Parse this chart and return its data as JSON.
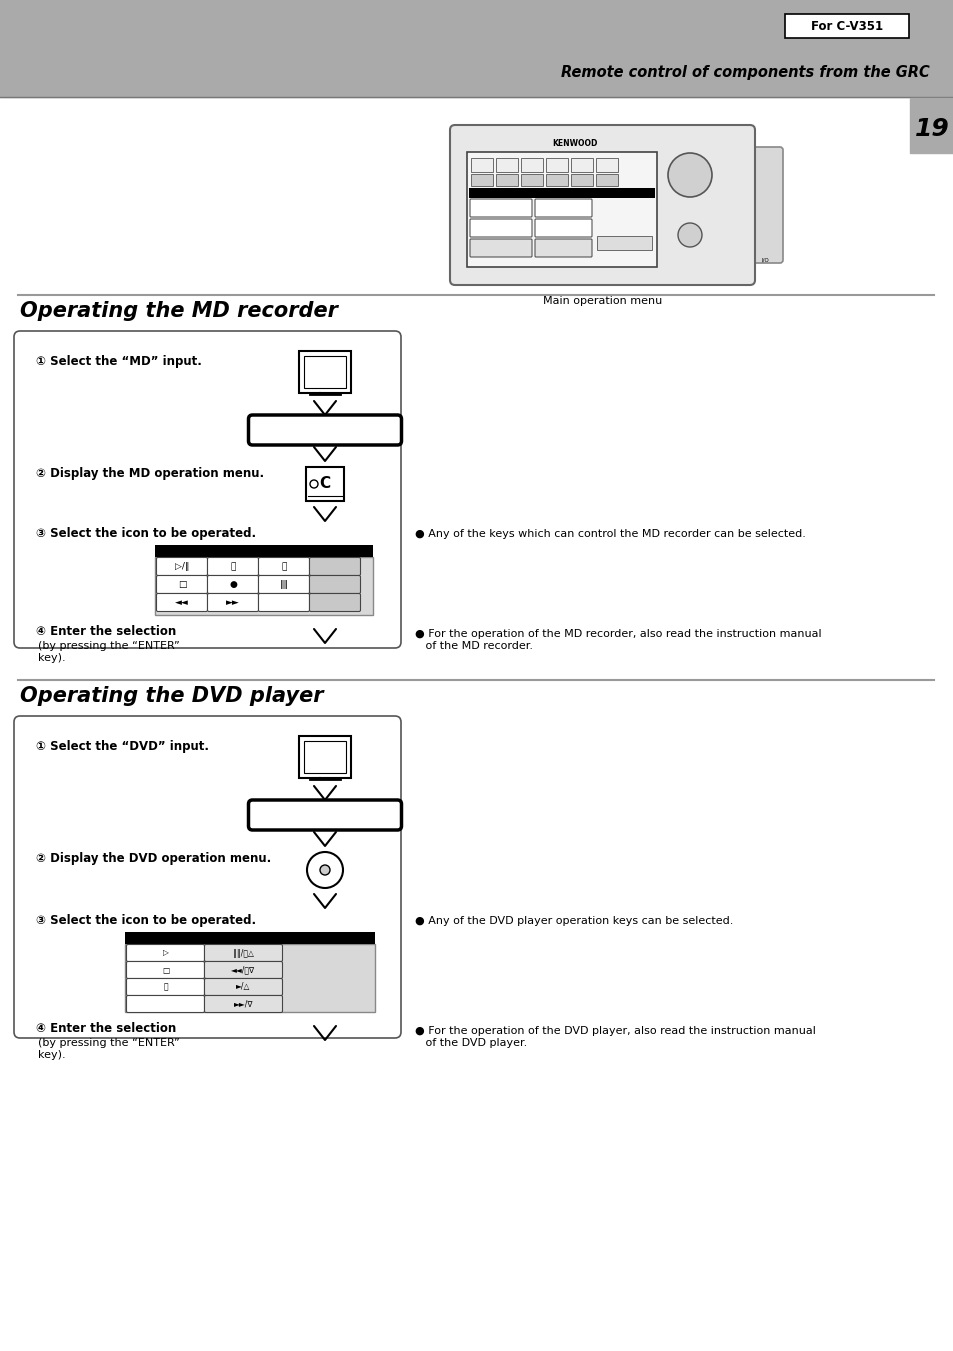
{
  "page_bg": "#ffffff",
  "header_bg": "#aaaaaa",
  "for_c_v351_text": "For C-V351",
  "remote_control_text": "Remote control of components from the GRC",
  "page_number": "19",
  "section1_title": "Operating the MD recorder",
  "section2_title": "Operating the DVD player",
  "step1_md": "① Select the “MD” input.",
  "step2_md": "② Display the MD operation menu.",
  "step3_md": "③ Select the icon to be operated.",
  "step4_md": "④ Enter the selection",
  "step4_md_sub": "(by pressing the “ENTER”\nkey).",
  "note1_md": "● Any of the keys which can control the MD recorder can be selected.",
  "note2_md": "● For the operation of the MD recorder, also read the instruction manual\n   of the MD recorder.",
  "step1_dvd": "① Select the “DVD” input.",
  "step2_dvd": "② Display the DVD operation menu.",
  "step3_dvd": "③ Select the icon to be operated.",
  "step4_dvd": "④ Enter the selection",
  "step4_dvd_sub": "(by pressing the “ENTER”\nkey).",
  "note1_dvd": "● Any of the DVD player operation keys can be selected.",
  "note2_dvd": "● For the operation of the DVD player, also read the instruction manual\n   of the DVD player.",
  "main_menu_label": "Main operation menu"
}
